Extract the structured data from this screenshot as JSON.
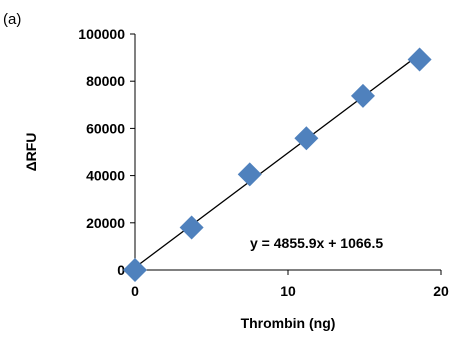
{
  "panel_label": "(a)",
  "chart_data": {
    "type": "scatter",
    "xlabel": "Thrombin (ng)",
    "ylabel": "ΔRFU",
    "xlim": [
      0,
      20
    ],
    "ylim": [
      0,
      100000
    ],
    "x_ticks": [
      0,
      10,
      20
    ],
    "x_tick_labels": [
      "0",
      "10",
      "20"
    ],
    "y_ticks": [
      0,
      20000,
      40000,
      60000,
      80000,
      100000
    ],
    "y_tick_labels": [
      "0",
      "20000",
      "40000",
      "60000",
      "80000",
      "100000"
    ],
    "grid": false,
    "legend": "none",
    "series": [
      {
        "marker": "diamond",
        "color": "#4F81BD",
        "x": [
          0,
          3.7,
          7.5,
          11.2,
          14.9,
          18.6
        ],
        "y": [
          0,
          18000,
          40500,
          55800,
          73800,
          89200
        ]
      }
    ],
    "trendline": {
      "slope": 4855.9,
      "intercept": 1066.5,
      "color": "#000000",
      "equation_label": "y = 4855.9x + 1066.5"
    }
  }
}
